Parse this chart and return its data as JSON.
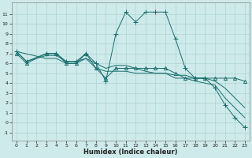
{
  "title": "",
  "xlabel": "Humidex (Indice chaleur)",
  "xlim": [
    -0.5,
    23.5
  ],
  "ylim": [
    -1.8,
    12.2
  ],
  "yticks": [
    -1,
    0,
    1,
    2,
    3,
    4,
    5,
    6,
    7,
    8,
    9,
    10,
    11
  ],
  "xticks": [
    0,
    1,
    2,
    3,
    4,
    5,
    6,
    7,
    8,
    9,
    10,
    11,
    12,
    13,
    14,
    15,
    16,
    17,
    18,
    19,
    20,
    21,
    22,
    23
  ],
  "bg_color": "#ceeaea",
  "line_color": "#1a6e6e",
  "grid_color": "#aed4d4",
  "lines": [
    {
      "x": [
        0,
        1,
        3,
        4,
        5,
        6,
        7,
        8,
        9,
        10,
        11,
        12,
        13,
        14,
        15,
        16,
        17,
        18,
        19,
        20,
        21,
        22,
        23
      ],
      "y": [
        7.2,
        6.2,
        7.0,
        7.0,
        6.2,
        6.2,
        7.0,
        6.0,
        4.2,
        9.0,
        11.2,
        10.2,
        11.2,
        11.2,
        11.2,
        8.5,
        5.5,
        4.5,
        4.5,
        3.5,
        1.8,
        0.5,
        -0.5
      ],
      "marker": "+"
    },
    {
      "x": [
        0,
        1,
        3,
        4,
        5,
        6,
        7,
        8,
        9,
        10,
        11,
        12,
        13,
        14,
        15,
        16,
        17,
        18,
        19,
        20,
        21,
        22,
        23
      ],
      "y": [
        7.2,
        6.2,
        6.8,
        6.8,
        6.2,
        6.2,
        6.5,
        6.0,
        5.5,
        5.8,
        5.8,
        5.5,
        5.2,
        5.0,
        5.0,
        4.8,
        4.8,
        4.5,
        4.5,
        4.2,
        3.5,
        2.5,
        1.5
      ],
      "marker": null
    },
    {
      "x": [
        0,
        3,
        4,
        5,
        6,
        7,
        8,
        9,
        10,
        11,
        12,
        13,
        14,
        15,
        16,
        17,
        18,
        19,
        20,
        21,
        22,
        23
      ],
      "y": [
        7.2,
        6.5,
        6.5,
        6.0,
        6.0,
        6.5,
        5.5,
        5.2,
        5.2,
        5.2,
        5.0,
        5.0,
        5.0,
        5.0,
        4.5,
        4.5,
        4.2,
        4.0,
        3.8,
        2.5,
        1.5,
        0.5
      ],
      "marker": null
    },
    {
      "x": [
        0,
        1,
        3,
        4,
        5,
        6,
        7,
        8,
        9,
        10,
        11,
        12,
        13,
        14,
        15,
        16,
        17,
        18,
        19,
        20,
        21,
        22,
        23
      ],
      "y": [
        7.0,
        6.0,
        7.0,
        7.0,
        6.0,
        6.0,
        7.0,
        5.5,
        4.5,
        5.5,
        5.5,
        5.5,
        5.5,
        5.5,
        5.5,
        5.0,
        4.5,
        4.5,
        4.5,
        4.5,
        4.5,
        4.5,
        4.2
      ],
      "marker": "^"
    }
  ]
}
